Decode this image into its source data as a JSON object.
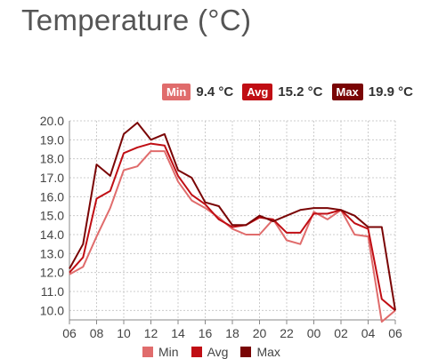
{
  "title": "Temperature (°C)",
  "stats": {
    "min": {
      "label": "Min",
      "value": "9.4 °C"
    },
    "avg": {
      "label": "Avg",
      "value": "15.2 °C"
    },
    "max": {
      "label": "Max",
      "value": "19.9 °C"
    }
  },
  "colors": {
    "min": "#e06c6c",
    "avg": "#c00e14",
    "max": "#7a0505"
  },
  "chart_data": {
    "type": "line",
    "title": "Temperature (°C)",
    "ylim": [
      9.5,
      20.0
    ],
    "yticks": [
      "20.0",
      "19.0",
      "18.0",
      "17.0",
      "16.0",
      "15.0",
      "14.0",
      "13.0",
      "12.0",
      "11.0",
      "10.0"
    ],
    "xticks": [
      "06",
      "08",
      "10",
      "12",
      "14",
      "16",
      "18",
      "20",
      "22",
      "00",
      "02",
      "04",
      "06"
    ],
    "x": [
      0,
      1,
      2,
      3,
      4,
      5,
      6,
      7,
      8,
      9,
      10,
      11,
      12,
      13,
      14,
      15,
      16,
      17,
      18,
      19,
      20,
      21,
      22,
      23,
      24
    ],
    "series": [
      {
        "name": "Min",
        "color": "#e06c6c",
        "values": [
          11.9,
          12.3,
          13.9,
          15.4,
          17.4,
          17.6,
          18.4,
          18.4,
          16.8,
          15.8,
          15.4,
          14.9,
          14.3,
          14.0,
          14.0,
          14.8,
          13.7,
          13.5,
          15.2,
          14.8,
          15.3,
          14.0,
          13.9,
          9.4,
          10.0
        ]
      },
      {
        "name": "Avg",
        "color": "#c00e14",
        "values": [
          12.0,
          12.8,
          15.9,
          16.3,
          18.3,
          18.6,
          18.8,
          18.7,
          17.1,
          16.1,
          15.6,
          14.8,
          14.4,
          14.5,
          14.9,
          14.8,
          14.1,
          14.1,
          15.1,
          15.1,
          15.3,
          14.6,
          14.3,
          10.6,
          10.0
        ]
      },
      {
        "name": "Max",
        "color": "#7a0505",
        "values": [
          12.2,
          13.5,
          17.7,
          17.1,
          19.3,
          19.9,
          19.0,
          19.3,
          17.4,
          17.0,
          15.7,
          15.5,
          14.5,
          14.5,
          15.0,
          14.7,
          15.0,
          15.3,
          15.4,
          15.4,
          15.3,
          15.0,
          14.4,
          14.4,
          10.0
        ]
      }
    ],
    "legend": [
      "Min",
      "Avg",
      "Max"
    ],
    "legend_position": "bottom",
    "grid": true
  }
}
